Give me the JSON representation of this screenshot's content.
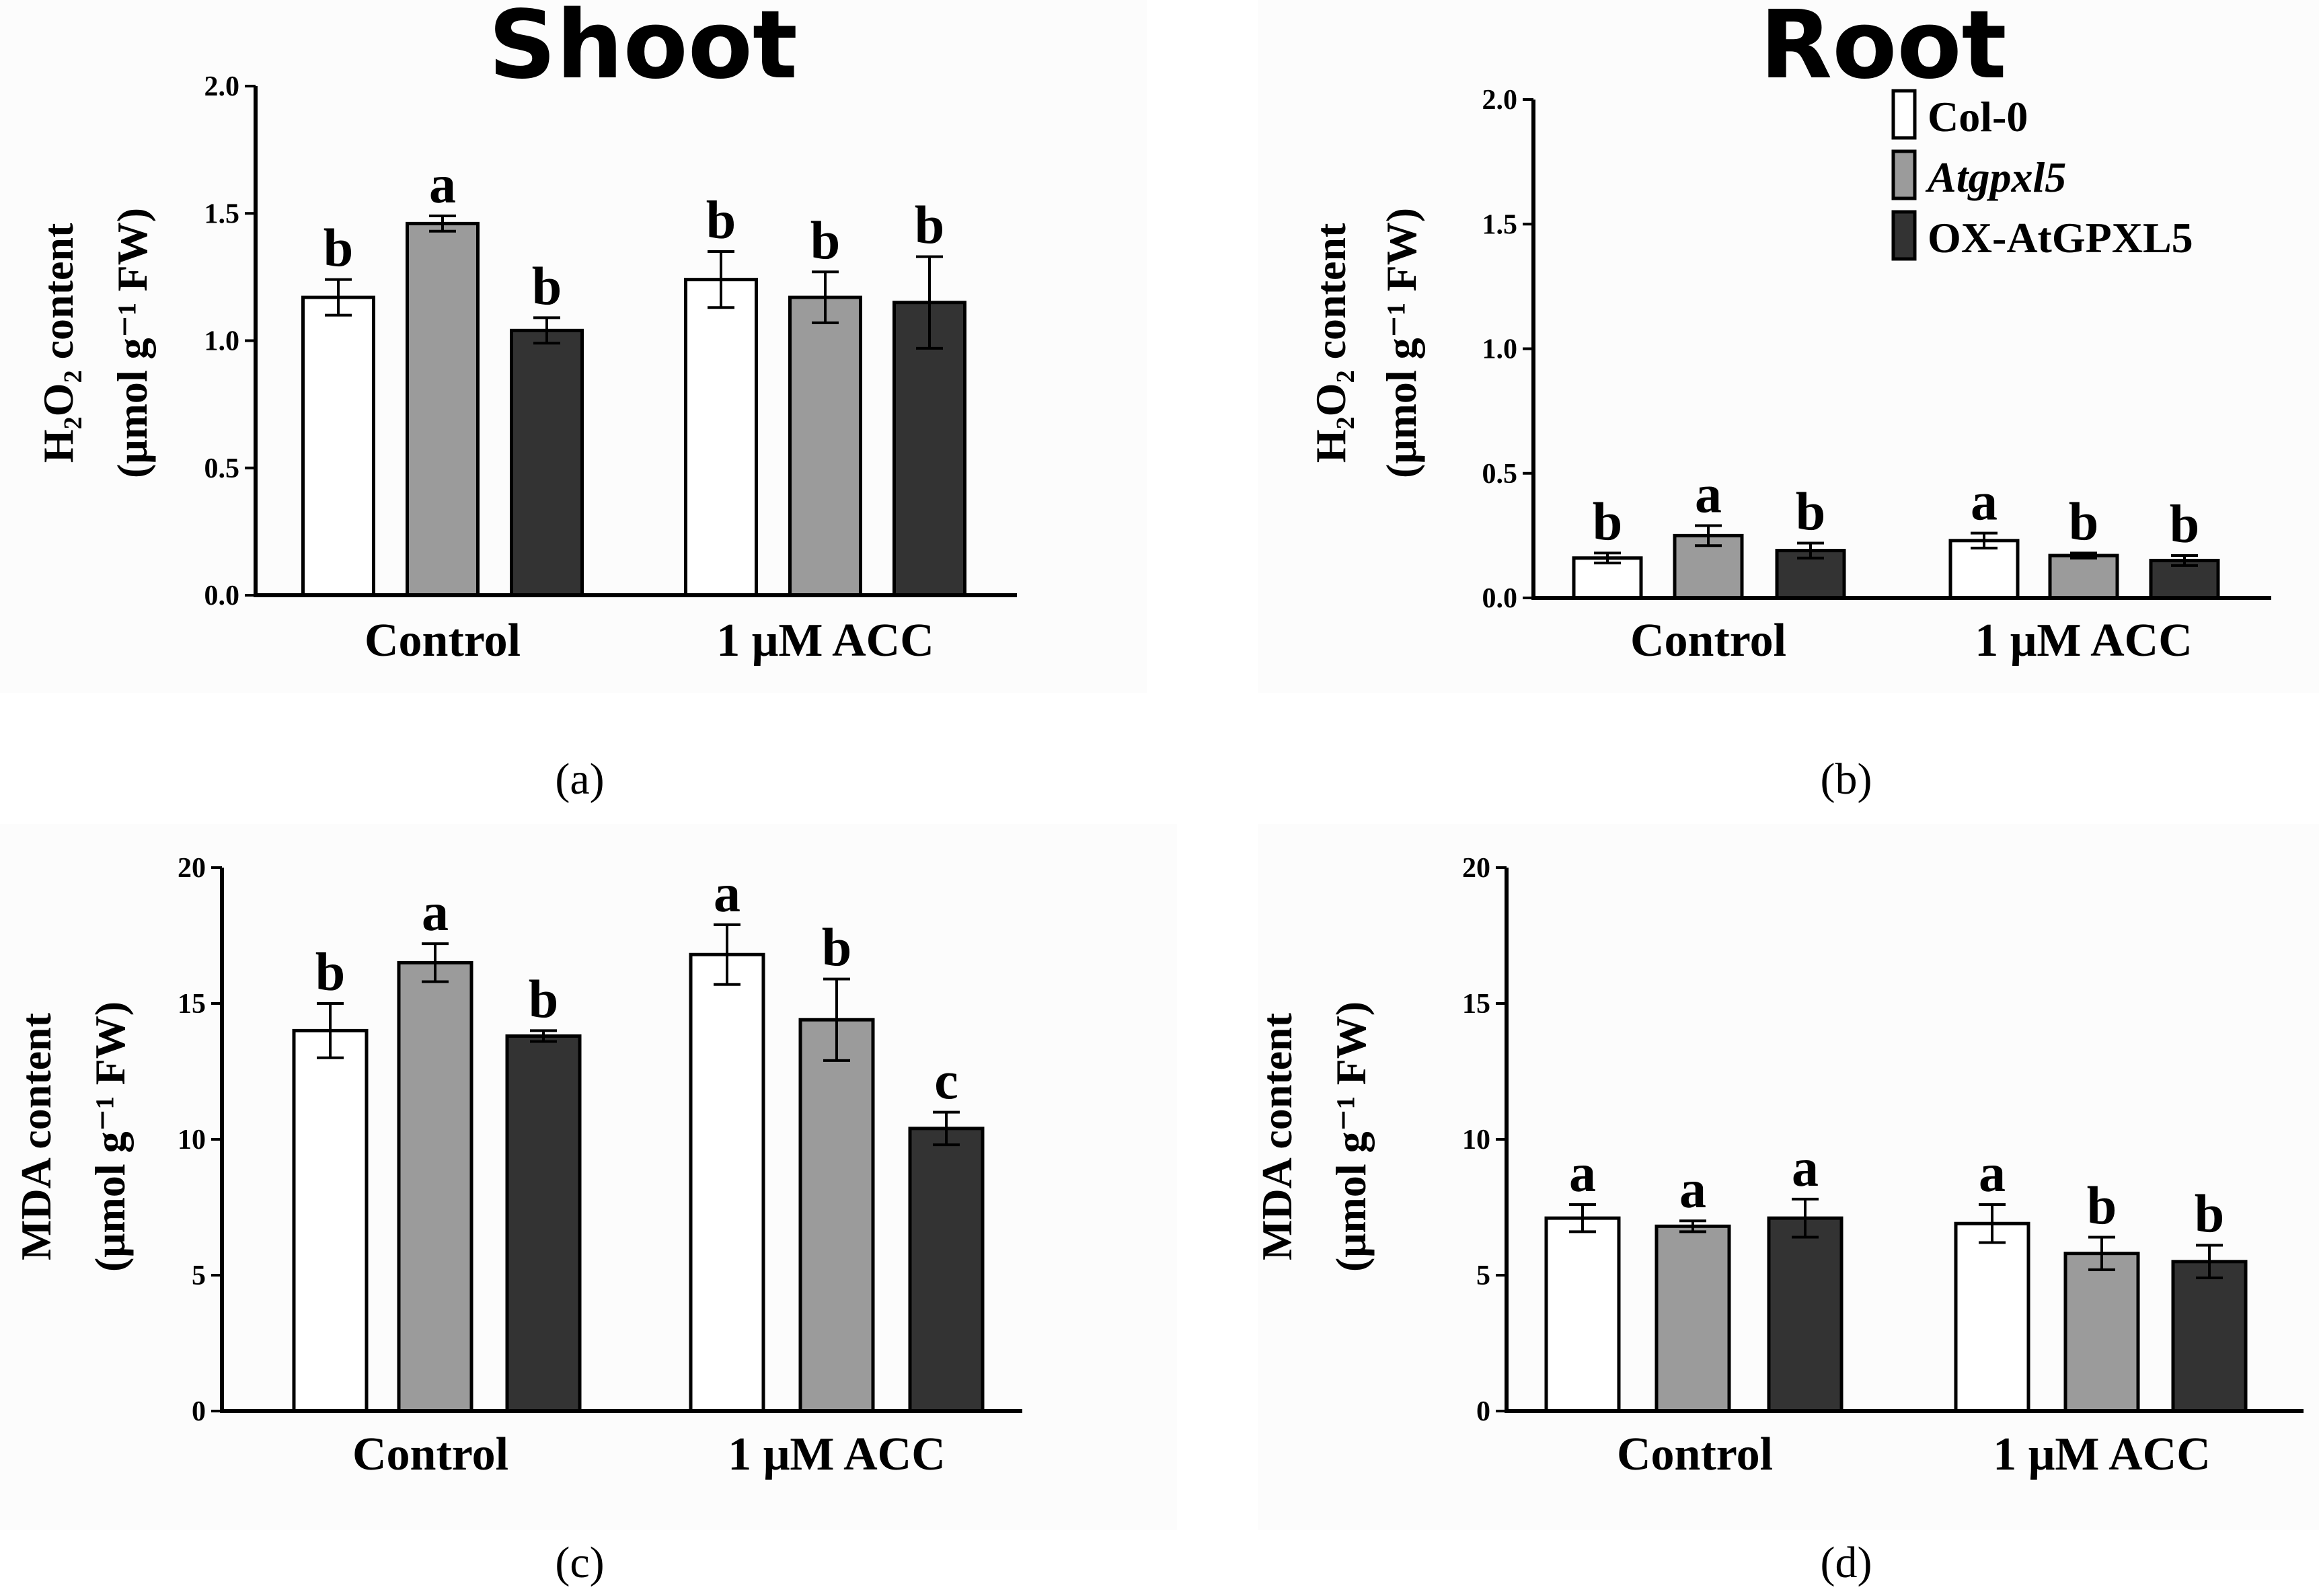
{
  "legend": {
    "entries": [
      {
        "label": "Col-0",
        "color": "#ffffff",
        "italic": false
      },
      {
        "label": "Atgpxl5",
        "color": "#9b9b9b",
        "italic": true
      },
      {
        "label": "OX-AtGPXL5",
        "color": "#333333",
        "italic": false
      }
    ]
  },
  "chart_data": [
    {
      "type": "bar",
      "caption": "(a)",
      "title": "Shoot",
      "ylabel_line1": "H₂O₂ content",
      "ylabel_line2": "(μmol g⁻¹ FW)",
      "ylim": [
        0,
        2.0
      ],
      "yticks": [
        "0.0",
        "0.5",
        "1.0",
        "1.5",
        "2.0"
      ],
      "categories": [
        "Control",
        "1 μM ACC"
      ],
      "series": [
        {
          "name": "Col-0",
          "values": [
            1.17,
            1.24
          ],
          "errors": [
            0.07,
            0.11
          ],
          "letters": [
            "b",
            "b"
          ]
        },
        {
          "name": "Atgpxl5",
          "values": [
            1.46,
            1.17
          ],
          "errors": [
            0.03,
            0.1
          ],
          "letters": [
            "a",
            "b"
          ]
        },
        {
          "name": "OX-AtGPXL5",
          "values": [
            1.04,
            1.15
          ],
          "errors": [
            0.05,
            0.18
          ],
          "letters": [
            "b",
            "b"
          ]
        }
      ]
    },
    {
      "type": "bar",
      "caption": "(b)",
      "title": "Root",
      "ylabel_line1": "H₂O₂ content",
      "ylabel_line2": "(μmol g⁻¹ FW)",
      "ylim": [
        0,
        2.0
      ],
      "yticks": [
        "0.0",
        "0.5",
        "1.0",
        "1.5",
        "2.0"
      ],
      "categories": [
        "Control",
        "1 μM ACC"
      ],
      "series": [
        {
          "name": "Col-0",
          "values": [
            0.16,
            0.23
          ],
          "errors": [
            0.02,
            0.03
          ],
          "letters": [
            "b",
            "a"
          ]
        },
        {
          "name": "Atgpxl5",
          "values": [
            0.25,
            0.17
          ],
          "errors": [
            0.04,
            0.01
          ],
          "letters": [
            "a",
            "b"
          ]
        },
        {
          "name": "OX-AtGPXL5",
          "values": [
            0.19,
            0.15
          ],
          "errors": [
            0.03,
            0.02
          ],
          "letters": [
            "b",
            "b"
          ]
        }
      ]
    },
    {
      "type": "bar",
      "caption": "(c)",
      "title": "",
      "ylabel_line1": "MDA content",
      "ylabel_line2": "(μmol g⁻¹ FW)",
      "ylim": [
        0,
        20
      ],
      "yticks": [
        "0",
        "5",
        "10",
        "15",
        "20"
      ],
      "categories": [
        "Control",
        "1 μM ACC"
      ],
      "series": [
        {
          "name": "Col-0",
          "values": [
            14.0,
            16.8
          ],
          "errors": [
            1.0,
            1.1
          ],
          "letters": [
            "b",
            "a"
          ]
        },
        {
          "name": "Atgpxl5",
          "values": [
            16.5,
            14.4
          ],
          "errors": [
            0.7,
            1.5
          ],
          "letters": [
            "a",
            "b"
          ]
        },
        {
          "name": "OX-AtGPXL5",
          "values": [
            13.8,
            10.4
          ],
          "errors": [
            0.2,
            0.6
          ],
          "letters": [
            "b",
            "c"
          ]
        }
      ]
    },
    {
      "type": "bar",
      "caption": "(d)",
      "title": "",
      "ylabel_line1": "MDA content",
      "ylabel_line2": "(μmol g⁻¹ FW)",
      "ylim": [
        0,
        20
      ],
      "yticks": [
        "0",
        "5",
        "10",
        "15",
        "20"
      ],
      "categories": [
        "Control",
        "1 μM ACC"
      ],
      "series": [
        {
          "name": "Col-0",
          "values": [
            7.1,
            6.9
          ],
          "errors": [
            0.5,
            0.7
          ],
          "letters": [
            "a",
            "a"
          ]
        },
        {
          "name": "Atgpxl5",
          "values": [
            6.8,
            5.8
          ],
          "errors": [
            0.2,
            0.6
          ],
          "letters": [
            "a",
            "b"
          ]
        },
        {
          "name": "OX-AtGPXL5",
          "values": [
            7.1,
            5.5
          ],
          "errors": [
            0.7,
            0.6
          ],
          "letters": [
            "a",
            "b"
          ]
        }
      ]
    }
  ]
}
